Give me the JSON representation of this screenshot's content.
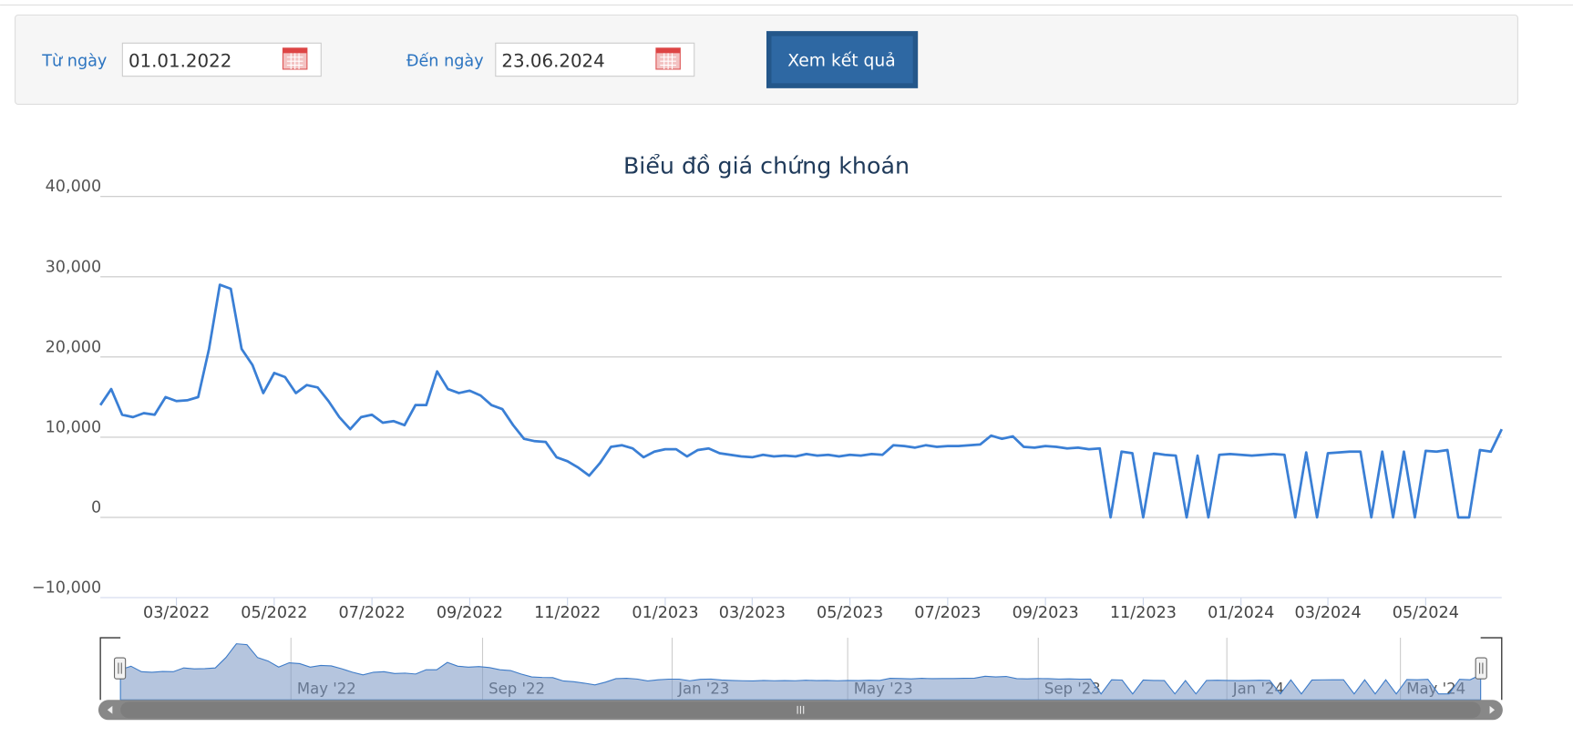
{
  "form": {
    "from_label": "Từ ngày",
    "from_value": "01.01.2022",
    "to_label": "Đến ngày",
    "to_value": "23.06.2024",
    "button": "Xem kết quả"
  },
  "chart_data": {
    "type": "line",
    "title": "Biểu đồ giá chứng khoán",
    "color": "#3a7fd5",
    "grid": true,
    "ylim": [
      -10000,
      40000
    ],
    "yticks": [
      {
        "value": -10000,
        "label": "−10,000"
      },
      0,
      {
        "value": 10000,
        "label": "10,000"
      },
      {
        "value": 20000,
        "label": "20,000"
      },
      {
        "value": 30000,
        "label": "30,000"
      },
      {
        "value": 40000,
        "label": "40,000"
      }
    ],
    "categories": [
      null,
      null,
      null,
      null,
      null,
      null,
      null,
      "03/2022",
      null,
      null,
      null,
      null,
      null,
      null,
      null,
      null,
      "05/2022",
      null,
      null,
      null,
      null,
      null,
      null,
      null,
      null,
      "07/2022",
      null,
      null,
      null,
      null,
      null,
      null,
      null,
      null,
      "09/2022",
      null,
      null,
      null,
      null,
      null,
      null,
      null,
      null,
      "11/2022",
      null,
      null,
      null,
      null,
      null,
      null,
      null,
      null,
      "01/2023",
      null,
      null,
      null,
      null,
      null,
      null,
      null,
      "03/2023",
      null,
      null,
      null,
      null,
      null,
      null,
      null,
      null,
      "05/2023",
      null,
      null,
      null,
      null,
      null,
      null,
      null,
      null,
      "07/2023",
      null,
      null,
      null,
      null,
      null,
      null,
      null,
      null,
      "09/2023",
      null,
      null,
      null,
      null,
      null,
      null,
      null,
      null,
      "11/2023",
      null,
      null,
      null,
      null,
      null,
      null,
      null,
      null,
      "01/2024",
      null,
      null,
      null,
      null,
      null,
      null,
      null,
      "03/2024",
      null,
      null,
      null,
      null,
      null,
      null,
      null,
      null,
      "05/2024",
      null,
      null,
      null,
      null,
      null,
      null,
      null
    ],
    "values": [
      14000,
      16000,
      12800,
      12500,
      13000,
      12800,
      15000,
      14500,
      14600,
      15000,
      21000,
      29000,
      28500,
      21000,
      19000,
      15500,
      18000,
      17500,
      15500,
      16500,
      16200,
      14500,
      12500,
      11000,
      12500,
      12800,
      11800,
      12000,
      11500,
      14000,
      14000,
      18200,
      16000,
      15500,
      15800,
      15200,
      14000,
      13500,
      11500,
      9800,
      9500,
      9400,
      7500,
      7000,
      6200,
      5200,
      6800,
      8800,
      9000,
      8600,
      7500,
      8200,
      8500,
      8500,
      7600,
      8400,
      8600,
      8000,
      7800,
      7600,
      7500,
      7800,
      7600,
      7700,
      7600,
      7900,
      7700,
      7800,
      7600,
      7800,
      7700,
      7900,
      7800,
      9000,
      8900,
      8700,
      9000,
      8800,
      8900,
      8900,
      9000,
      9100,
      10200,
      9800,
      10100,
      8800,
      8700,
      8900,
      8800,
      8600,
      8700,
      8500,
      8600,
      0,
      8200,
      8000,
      0,
      8000,
      7800,
      7700,
      0,
      7700,
      0,
      7800,
      7900,
      7800,
      7700,
      7800,
      7900,
      7800,
      0,
      8100,
      0,
      8000,
      8100,
      8200,
      8200,
      0,
      8200,
      0,
      8200,
      0,
      8300,
      8200,
      8400,
      0,
      0,
      8400,
      8200,
      11000
    ]
  },
  "navigator": {
    "labels": [
      "May '22",
      "Sep '22",
      "Jan '23",
      "May '23",
      "Sep '23",
      "Jan '24",
      "May '24"
    ]
  }
}
